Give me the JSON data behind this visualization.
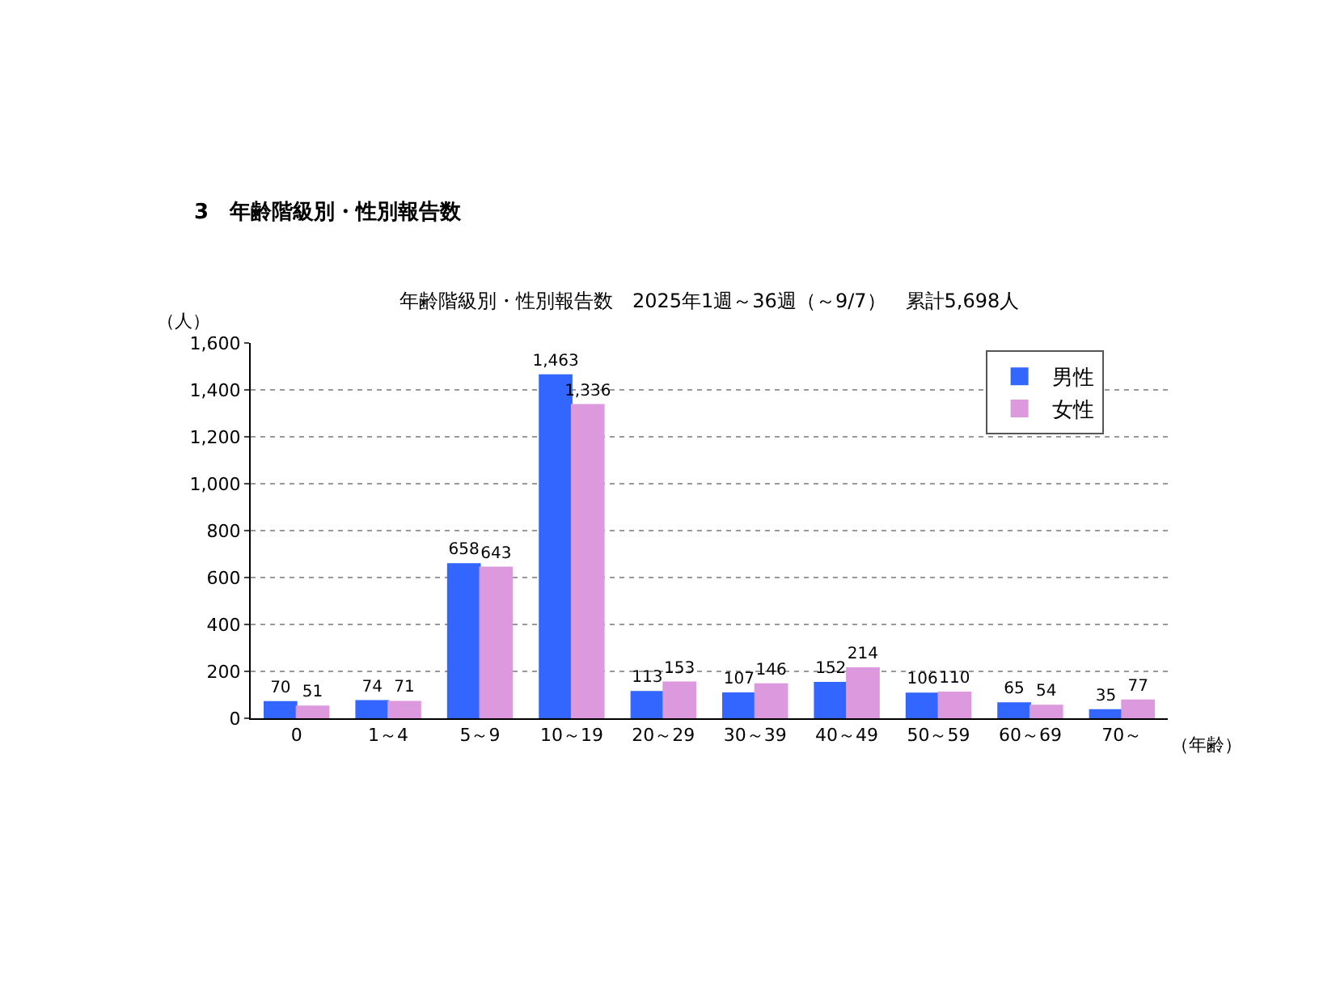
{
  "chart_data": {
    "type": "bar",
    "title": "3　年齢階級別・性別報告数",
    "subtitle": "年齢階級別・性別報告数　2025年1週～36週（～9/7）　累計5,698人",
    "xlabel": "（年齢）",
    "ylabel": "（人）",
    "categories": [
      "0",
      "1～4",
      "5～9",
      "10～19",
      "20～29",
      "30～39",
      "40～49",
      "50～59",
      "60～69",
      "70～"
    ],
    "series": [
      {
        "name": "男性",
        "color": "#3366ff",
        "values": [
          70,
          74,
          658,
          1463,
          113,
          107,
          152,
          106,
          65,
          35
        ],
        "value_labels": [
          "70",
          "74",
          "658",
          "1,463",
          "113",
          "107",
          "152",
          "106",
          "65",
          "35"
        ]
      },
      {
        "name": "女性",
        "color": "#dd99dd",
        "values": [
          51,
          71,
          643,
          1336,
          153,
          146,
          214,
          110,
          54,
          77
        ],
        "value_labels": [
          "51",
          "71",
          "643",
          "1,336",
          "153",
          "146",
          "214",
          "110",
          "54",
          "77"
        ]
      }
    ],
    "ylim": [
      0,
      1600
    ],
    "yticks": [
      0,
      {
        "value": 200,
        "label": "200"
      },
      400,
      600,
      800,
      {
        "value": 1000,
        "label": "1,000"
      },
      {
        "value": 1200,
        "label": "1,200"
      },
      {
        "value": 1400,
        "label": "1,400"
      },
      {
        "value": 1600,
        "label": "1,600"
      }
    ],
    "grid": "y",
    "legend": "top right"
  }
}
